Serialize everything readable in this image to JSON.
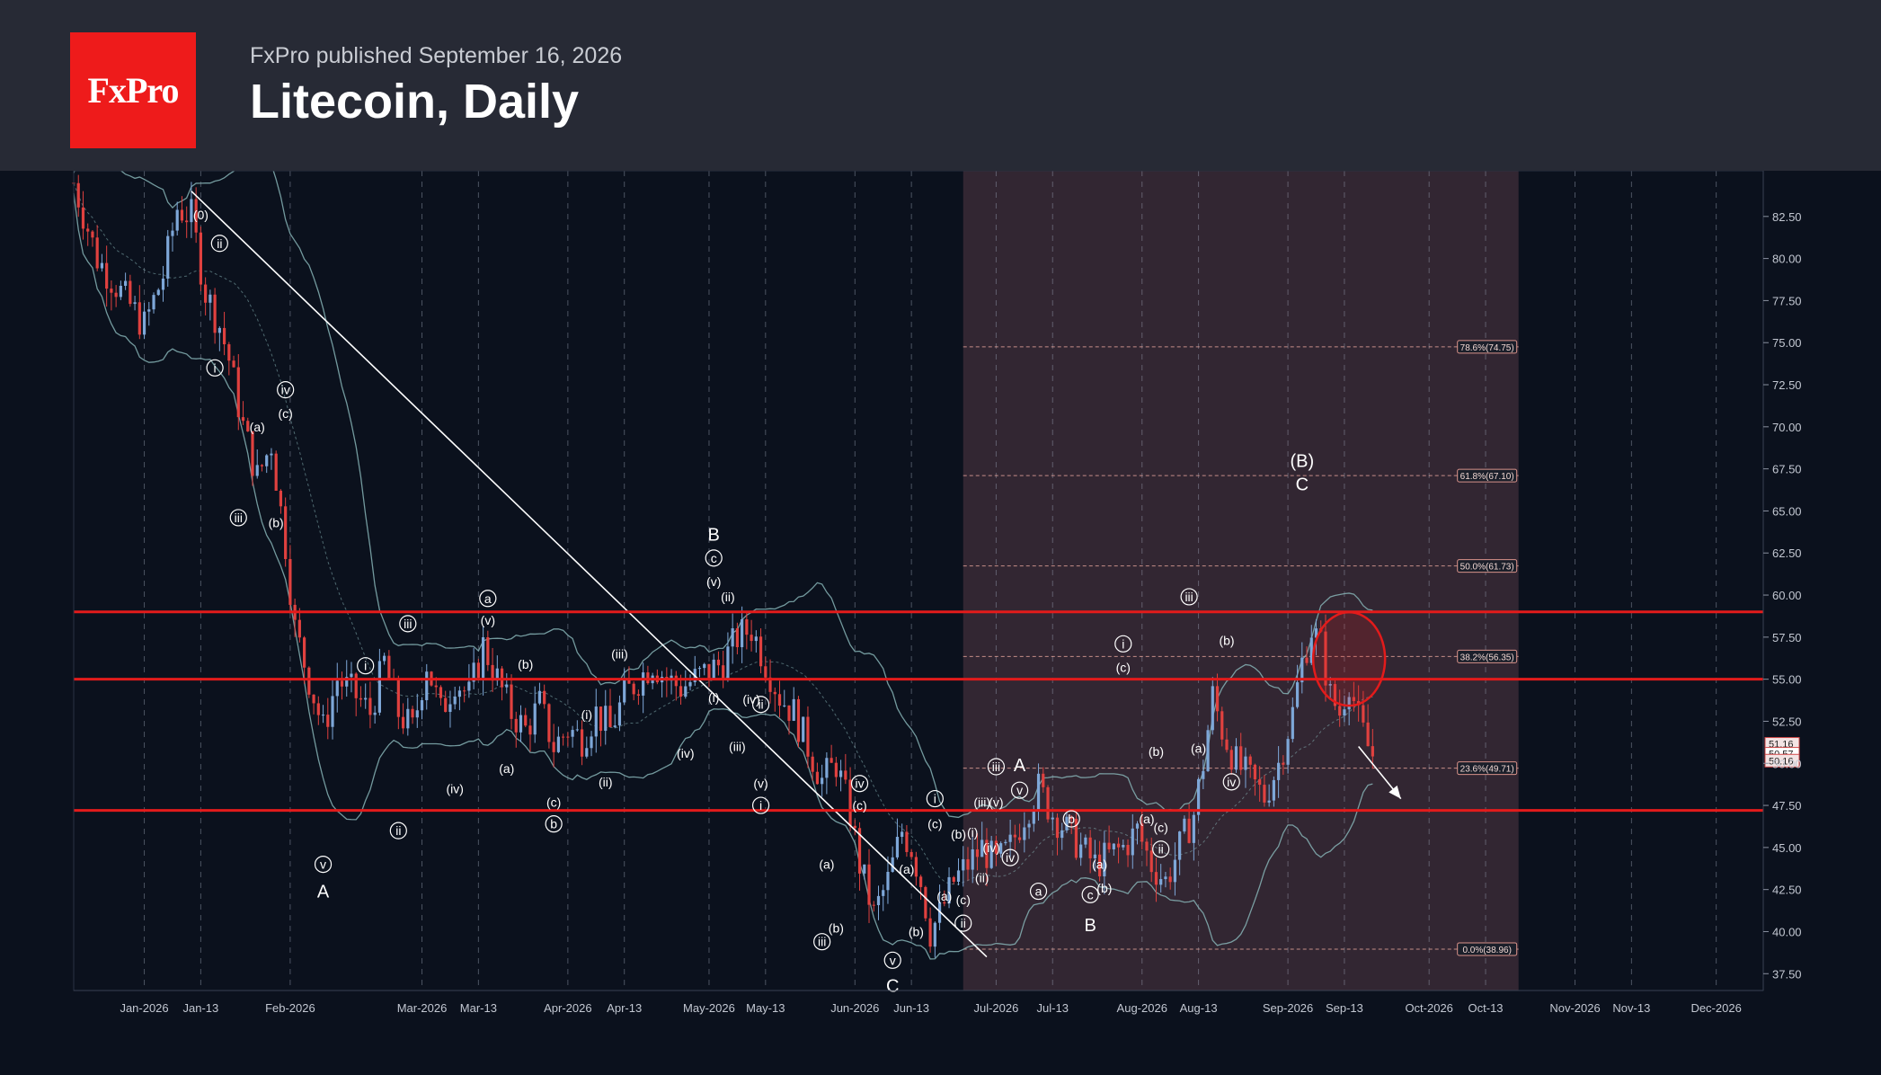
{
  "header": {
    "logo_text": "FxPro",
    "published": "FxPro published September 16, 2026",
    "title": "Litecoin, Daily"
  },
  "colors": {
    "header_bg": "#272a35",
    "logo_bg": "#ee1b1b",
    "chart_bg": "#0b111d",
    "candle_up": "#7ea7d8",
    "candle_down": "#e0413f",
    "sr_line": "#e31b1b",
    "fib_zone": "#3a2a36",
    "bollinger": "#86b3b5"
  },
  "chart_data": {
    "type": "candlestick",
    "title": "Litecoin, Daily",
    "ylim": [
      36.5,
      85
    ],
    "y_ticks": [
      "82.50",
      "80.00",
      "77.50",
      "75.00",
      "72.50",
      "70.00",
      "67.50",
      "65.00",
      "62.50",
      "60.00",
      "57.50",
      "55.00",
      "52.50",
      "50.00",
      "47.50",
      "45.00",
      "42.50",
      "40.00",
      "37.50"
    ],
    "x_ticks": [
      "Jan-2026",
      "Jan-13",
      "Feb-2026",
      "Mar-2026",
      "Mar-13",
      "Apr-2026",
      "Apr-13",
      "May-2026",
      "May-13",
      "Jun-2026",
      "Jun-13",
      "Jul-2026",
      "Jul-13",
      "Aug-2026",
      "Aug-13",
      "Sep-2026",
      "Sep-13",
      "Oct-2026",
      "Oct-13",
      "Nov-2026",
      "Nov-13",
      "Dec-2026"
    ],
    "x_tick_days": [
      20,
      32,
      51,
      79,
      91,
      110,
      122,
      140,
      152,
      171,
      183,
      201,
      213,
      232,
      244,
      263,
      275,
      293,
      305,
      324,
      336,
      354
    ],
    "price_path": [
      [
        5,
        84.5
      ],
      [
        10,
        80
      ],
      [
        15,
        78
      ],
      [
        20,
        76
      ],
      [
        24,
        79
      ],
      [
        27,
        83
      ],
      [
        30,
        82.5
      ],
      [
        33,
        78
      ],
      [
        36,
        76
      ],
      [
        38,
        74
      ],
      [
        41,
        70
      ],
      [
        44,
        67
      ],
      [
        47,
        69
      ],
      [
        50,
        63
      ],
      [
        52,
        58
      ],
      [
        55,
        55
      ],
      [
        58,
        52
      ],
      [
        61,
        55
      ],
      [
        65,
        54
      ],
      [
        68,
        53
      ],
      [
        71,
        56
      ],
      [
        74,
        53
      ],
      [
        77,
        52
      ],
      [
        80,
        56
      ],
      [
        83,
        53
      ],
      [
        86,
        55
      ],
      [
        89,
        54
      ],
      [
        92,
        57
      ],
      [
        95,
        55
      ],
      [
        98,
        53
      ],
      [
        101,
        52
      ],
      [
        104,
        53.5
      ],
      [
        107,
        51
      ],
      [
        110,
        52
      ],
      [
        113,
        51.5
      ],
      [
        116,
        53
      ],
      [
        119,
        52
      ],
      [
        122,
        54
      ],
      [
        125,
        55
      ],
      [
        128,
        56
      ],
      [
        131,
        55
      ],
      [
        134,
        54.5
      ],
      [
        137,
        55
      ],
      [
        140,
        55.5
      ],
      [
        143,
        56
      ],
      [
        146,
        57.5
      ],
      [
        149,
        58
      ],
      [
        152,
        56
      ],
      [
        155,
        54
      ],
      [
        158,
        53
      ],
      [
        161,
        51
      ],
      [
        164,
        49
      ],
      [
        167,
        50
      ],
      [
        170,
        47
      ],
      [
        172,
        44
      ],
      [
        175,
        41
      ],
      [
        178,
        43
      ],
      [
        181,
        46
      ],
      [
        183,
        45
      ],
      [
        185,
        43
      ],
      [
        187,
        40
      ],
      [
        189,
        41
      ],
      [
        192,
        43
      ],
      [
        195,
        44
      ],
      [
        198,
        45
      ],
      [
        201,
        44
      ],
      [
        204,
        45
      ],
      [
        207,
        47
      ],
      [
        210,
        48.5
      ],
      [
        213,
        47
      ],
      [
        216,
        46
      ],
      [
        219,
        45
      ],
      [
        222,
        44
      ],
      [
        225,
        44.5
      ],
      [
        228,
        45
      ],
      [
        231,
        46
      ],
      [
        234,
        44
      ],
      [
        237,
        43
      ],
      [
        240,
        45
      ],
      [
        243,
        47
      ],
      [
        245,
        50
      ],
      [
        247,
        54
      ],
      [
        249,
        52
      ],
      [
        252,
        50
      ],
      [
        255,
        49
      ],
      [
        258,
        48
      ],
      [
        261,
        50
      ],
      [
        264,
        53
      ],
      [
        266,
        56
      ],
      [
        268,
        58
      ],
      [
        270,
        57
      ],
      [
        272,
        54
      ],
      [
        274,
        53
      ],
      [
        276,
        55
      ],
      [
        278,
        52.5
      ],
      [
        280,
        51
      ],
      [
        281,
        50.5
      ]
    ],
    "support_resistance_lines": [
      59.0,
      55.0,
      47.2
    ],
    "fibonacci_levels": [
      {
        "label": "78.6%(74.75)",
        "value": 74.75
      },
      {
        "label": "61.8%(67.10)",
        "value": 67.1
      },
      {
        "label": "50.0%(61.73)",
        "value": 61.73
      },
      {
        "label": "38.2%(56.35)",
        "value": 56.35
      },
      {
        "label": "23.6%(49.71)",
        "value": 49.71
      },
      {
        "label": "0.0%(38.96)",
        "value": 38.96
      }
    ],
    "fib_zone_days": [
      194,
      312
    ],
    "trendline": [
      [
        30,
        84
      ],
      [
        199,
        38.5
      ]
    ],
    "forecast_arrow": [
      [
        278,
        51
      ],
      [
        287,
        47.9
      ]
    ],
    "highlight_circle": {
      "day": 276,
      "value": 56.2
    },
    "price_labels": [
      "51.16",
      "50.57",
      "50.16"
    ],
    "price_label_values": [
      51.16,
      50.57,
      50.16
    ],
    "wave_labels": [
      {
        "t": "(0)",
        "d": 32,
        "v": 82.6,
        "c": false
      },
      {
        "t": "ii",
        "d": 36,
        "v": 80.9,
        "c": true
      },
      {
        "t": "i",
        "d": 35,
        "v": 73.5,
        "c": true
      },
      {
        "t": "iv",
        "d": 50,
        "v": 72.2,
        "c": true
      },
      {
        "t": "(c)",
        "d": 50,
        "v": 70.8,
        "c": false
      },
      {
        "t": "(a)",
        "d": 44,
        "v": 70.0,
        "c": false
      },
      {
        "t": "iii",
        "d": 40,
        "v": 64.6,
        "c": true
      },
      {
        "t": "(b)",
        "d": 48,
        "v": 64.3,
        "c": false
      },
      {
        "t": "v",
        "d": 58,
        "v": 44.0,
        "c": true
      },
      {
        "t": "A",
        "d": 58,
        "v": 42.4,
        "c": false,
        "big": true
      },
      {
        "t": "i",
        "d": 67,
        "v": 55.8,
        "c": true
      },
      {
        "t": "iii",
        "d": 76,
        "v": 58.3,
        "c": true
      },
      {
        "t": "ii",
        "d": 74,
        "v": 46.0,
        "c": true
      },
      {
        "t": "(iv)",
        "d": 86,
        "v": 48.5,
        "c": false
      },
      {
        "t": "a",
        "d": 93,
        "v": 59.8,
        "c": true
      },
      {
        "t": "(v)",
        "d": 93,
        "v": 58.5,
        "c": false
      },
      {
        "t": "(a)",
        "d": 97,
        "v": 49.7,
        "c": false
      },
      {
        "t": "(b)",
        "d": 101,
        "v": 55.9,
        "c": false
      },
      {
        "t": "(c)",
        "d": 107,
        "v": 47.7,
        "c": false
      },
      {
        "t": "b",
        "d": 107,
        "v": 46.4,
        "c": true
      },
      {
        "t": "(i)",
        "d": 114,
        "v": 52.9,
        "c": false
      },
      {
        "t": "(ii)",
        "d": 118,
        "v": 48.9,
        "c": false
      },
      {
        "t": "(iii)",
        "d": 121,
        "v": 56.5,
        "c": false
      },
      {
        "t": "(iv)",
        "d": 135,
        "v": 50.6,
        "c": false
      },
      {
        "t": "(i)",
        "d": 141,
        "v": 53.9,
        "c": false
      },
      {
        "t": "B",
        "d": 141,
        "v": 63.6,
        "c": false,
        "big": true
      },
      {
        "t": "c",
        "d": 141,
        "v": 62.2,
        "c": true
      },
      {
        "t": "(v)",
        "d": 141,
        "v": 60.8,
        "c": false
      },
      {
        "t": "(ii)",
        "d": 144,
        "v": 59.9,
        "c": false
      },
      {
        "t": "(iv)",
        "d": 149,
        "v": 53.8,
        "c": false
      },
      {
        "t": "ii",
        "d": 151,
        "v": 53.5,
        "c": true
      },
      {
        "t": "(iii)",
        "d": 146,
        "v": 51.0,
        "c": false
      },
      {
        "t": "(v)",
        "d": 151,
        "v": 48.8,
        "c": false
      },
      {
        "t": "i",
        "d": 151,
        "v": 47.5,
        "c": true
      },
      {
        "t": "(a)",
        "d": 165,
        "v": 44.0,
        "c": false
      },
      {
        "t": "(b)",
        "d": 167,
        "v": 40.2,
        "c": false
      },
      {
        "t": "iii",
        "d": 164,
        "v": 39.4,
        "c": true
      },
      {
        "t": "iv",
        "d": 172,
        "v": 48.8,
        "c": true
      },
      {
        "t": "(c)",
        "d": 172,
        "v": 47.5,
        "c": false
      },
      {
        "t": "v",
        "d": 179,
        "v": 38.3,
        "c": true
      },
      {
        "t": "C",
        "d": 179,
        "v": 36.8,
        "c": false,
        "big": true
      },
      {
        "t": "(a)",
        "d": 182,
        "v": 43.7,
        "c": false
      },
      {
        "t": "(b)",
        "d": 184,
        "v": 40.0,
        "c": false
      },
      {
        "t": "(a)",
        "d": 190,
        "v": 42.1,
        "c": false
      },
      {
        "t": "i",
        "d": 188,
        "v": 47.9,
        "c": true
      },
      {
        "t": "(c)",
        "d": 188,
        "v": 46.4,
        "c": false
      },
      {
        "t": "(b)",
        "d": 193,
        "v": 45.8,
        "c": false
      },
      {
        "t": "(i)",
        "d": 196,
        "v": 45.9,
        "c": false
      },
      {
        "t": "(c)",
        "d": 194,
        "v": 41.9,
        "c": false
      },
      {
        "t": "ii",
        "d": 194,
        "v": 40.5,
        "c": true
      },
      {
        "t": "(iii)",
        "d": 198,
        "v": 47.7,
        "c": false
      },
      {
        "t": "(ii)",
        "d": 198,
        "v": 43.2,
        "c": false
      },
      {
        "t": "iii",
        "d": 201,
        "v": 49.8,
        "c": true
      },
      {
        "t": "(v)",
        "d": 201,
        "v": 47.7,
        "c": false
      },
      {
        "t": "(iv)",
        "d": 200,
        "v": 45.0,
        "c": false
      },
      {
        "t": "A",
        "d": 206,
        "v": 49.9,
        "c": false,
        "big": true
      },
      {
        "t": "v",
        "d": 206,
        "v": 48.4,
        "c": true
      },
      {
        "t": "iv",
        "d": 204,
        "v": 44.4,
        "c": true
      },
      {
        "t": "a",
        "d": 210,
        "v": 42.4,
        "c": true
      },
      {
        "t": "b",
        "d": 217,
        "v": 46.7,
        "c": true
      },
      {
        "t": "(a)",
        "d": 223,
        "v": 44.0,
        "c": false
      },
      {
        "t": "c",
        "d": 221,
        "v": 42.2,
        "c": true
      },
      {
        "t": "(b)",
        "d": 224,
        "v": 42.6,
        "c": false
      },
      {
        "t": "B",
        "d": 221,
        "v": 40.4,
        "c": false,
        "big": true
      },
      {
        "t": "i",
        "d": 228,
        "v": 57.1,
        "c": true
      },
      {
        "t": "(c)",
        "d": 228,
        "v": 55.7,
        "c": false
      },
      {
        "t": "(b)",
        "d": 235,
        "v": 50.7,
        "c": false
      },
      {
        "t": "(a)",
        "d": 233,
        "v": 46.7,
        "c": false
      },
      {
        "t": "(c)",
        "d": 236,
        "v": 46.2,
        "c": false
      },
      {
        "t": "ii",
        "d": 236,
        "v": 44.9,
        "c": true
      },
      {
        "t": "iii",
        "d": 242,
        "v": 59.9,
        "c": true
      },
      {
        "t": "(b)",
        "d": 250,
        "v": 57.3,
        "c": false
      },
      {
        "t": "(a)",
        "d": 244,
        "v": 50.9,
        "c": false
      },
      {
        "t": "iv",
        "d": 251,
        "v": 48.9,
        "c": true
      },
      {
        "t": "(B)",
        "d": 266,
        "v": 68.0,
        "c": false,
        "big": true
      },
      {
        "t": "C",
        "d": 266,
        "v": 66.6,
        "c": false,
        "big": true
      }
    ]
  }
}
